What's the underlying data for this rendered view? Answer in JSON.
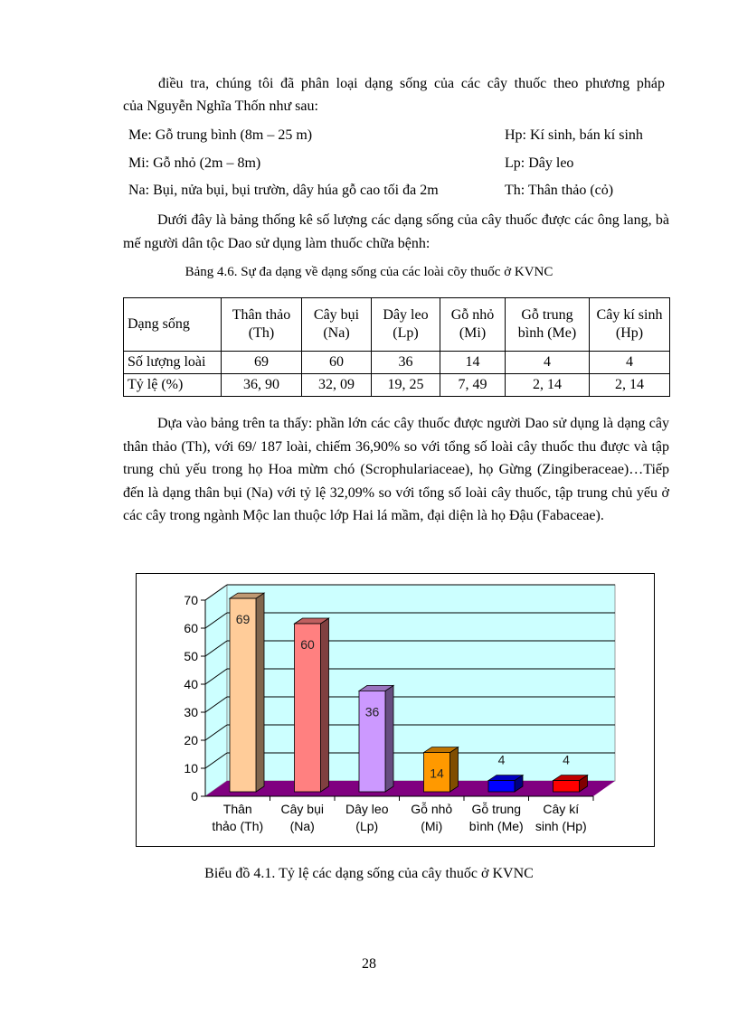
{
  "intro": {
    "line1": "điều tra, chúng tôi đã phân loại dạng sống của các cây thuốc theo phương pháp",
    "line2": "của Nguyễn Nghĩa Thốn như sau:"
  },
  "legend_defs": {
    "left": [
      "Me: Gỗ trung bình (8m – 25 m)",
      "Mi: Gỗ nhỏ (2m – 8m)",
      "Na: Bụi, nửa bụi, bụi trườn, dây húa gỗ cao tối đa 2m"
    ],
    "right": [
      "Hp: Kí sinh, bán kí sinh",
      "Lp: Dây leo",
      "Th: Thân thảo (cỏ)"
    ]
  },
  "para2": "Dưới đây là bảng thống kê số lượng các dạng sống của cây thuốc được các ông lang, bà mế người dân tộc Dao sử dụng làm thuốc chữa bệnh:",
  "table": {
    "caption": "Bảng 4.6. Sự đa dạng về dạng sống của các loài cõy thuốc ở KVNC",
    "header": [
      "Dạng sống",
      "Thân thảo (Th)",
      "Cây bụi (Na)",
      "Dây leo (Lp)",
      "Gỗ nhỏ (Mi)",
      "Gỗ trung bình (Me)",
      "Cây kí sinh (Hp)"
    ],
    "rows": [
      [
        "Số lượng loài",
        "69",
        "60",
        "36",
        "14",
        "4",
        "4"
      ],
      [
        "Tỷ lệ (%)",
        "36, 90",
        "32, 09",
        "19, 25",
        "7, 49",
        "2, 14",
        "2, 14"
      ]
    ]
  },
  "para3": "Dựa vào bảng trên ta thấy: phần lớn các cây thuốc được người Dao sử dụng là dạng cây thân thảo (Th), với 69/ 187 loài, chiếm 36,90% so với tổng số loài cây thuốc thu được và tập trung chủ yếu trong họ Hoa mừm chó (Scrophulariaceae), họ Gừng (Zingiberaceae)…Tiếp đến là dạng thân bụi (Na) với tỷ lệ 32,09% so với tổng số loài cây thuốc, tập trung chủ yếu ở các cây trong ngành Mộc lan thuộc lớp Hai lá mầm, đại diện là họ Đậu (Fabaceae).",
  "chart_data": {
    "type": "bar",
    "style": "3d-column",
    "categories": [
      [
        "Thân",
        "thảo (Th)"
      ],
      [
        "Cây bụi",
        "(Na)"
      ],
      [
        "Dây leo",
        "(Lp)"
      ],
      [
        "Gỗ nhỏ",
        "(Mi)"
      ],
      [
        "Gỗ trung",
        "bình (Me)"
      ],
      [
        "Cây kí",
        "sinh (Hp)"
      ]
    ],
    "values": [
      69,
      60,
      36,
      14,
      4,
      4
    ],
    "data_labels": [
      "69",
      "60",
      "36",
      "14",
      "4",
      "4"
    ],
    "colors": [
      "#FFCC99",
      "#FF8080",
      "#CC99FF",
      "#FF9900",
      "#0000FF",
      "#FF0000"
    ],
    "ylim": [
      0,
      70
    ],
    "yticks": [
      "0",
      "10",
      "20",
      "30",
      "40",
      "50",
      "60",
      "70"
    ],
    "grid": true,
    "wall_color": "#CCFFFF",
    "floor_color": "#800080",
    "title": "",
    "xlabel": "",
    "ylabel": ""
  },
  "chart_caption": "Biểu đồ 4.1. Tỷ lệ các dạng sống của cây thuốc ở KVNC",
  "page_number": "28"
}
